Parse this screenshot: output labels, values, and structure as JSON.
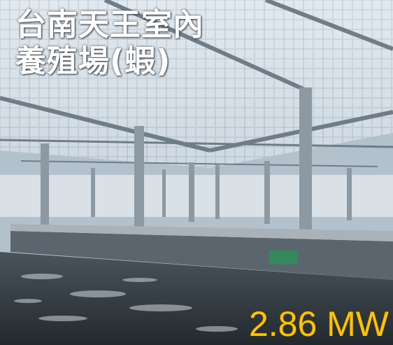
{
  "caption": {
    "title_line1": "台南天王室內",
    "title_line2": "養殖場(蝦)",
    "capacity": "2.86 MW"
  }
}
